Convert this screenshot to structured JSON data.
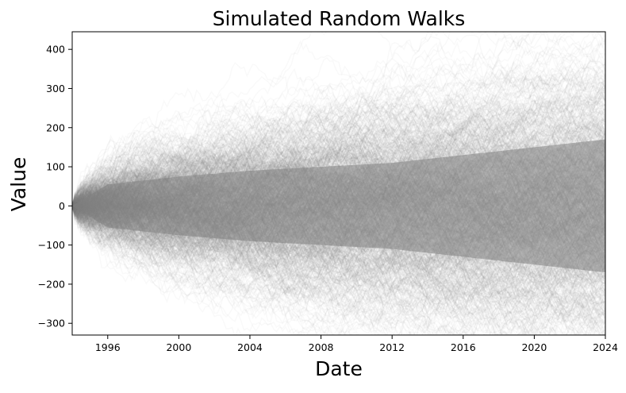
{
  "chart_data": {
    "type": "line",
    "title": "Simulated Random Walks",
    "xlabel": "Date",
    "ylabel": "Value",
    "x_ticks": [
      "1996",
      "2000",
      "2004",
      "2008",
      "2012",
      "2016",
      "2020",
      "2024"
    ],
    "y_ticks": [
      "−300",
      "−200",
      "−100",
      "0",
      "100",
      "200",
      "300",
      "400"
    ],
    "xlim": [
      "1994-01-01",
      "2024-01-01"
    ],
    "ylim": [
      -330,
      445
    ],
    "grid": false,
    "legend": "none",
    "series_color": "#808080",
    "series_opacity": 0.05,
    "series_count_estimate": 1000,
    "series_envelope": {
      "dates": [
        "1994-01-01",
        "1996-01-01",
        "2000-01-01",
        "2004-01-01",
        "2008-01-01",
        "2012-01-01",
        "2016-01-01",
        "2020-01-01",
        "2024-01-01"
      ],
      "max": [
        0,
        100,
        180,
        200,
        230,
        305,
        330,
        360,
        400
      ],
      "min": [
        0,
        -90,
        -150,
        -200,
        -230,
        -260,
        -280,
        -290,
        -300
      ],
      "dense_band_upper": [
        0,
        55,
        75,
        90,
        100,
        110,
        130,
        150,
        170
      ],
      "dense_band_lower": [
        0,
        -55,
        -75,
        -90,
        -100,
        -110,
        -130,
        -150,
        -170
      ]
    }
  }
}
